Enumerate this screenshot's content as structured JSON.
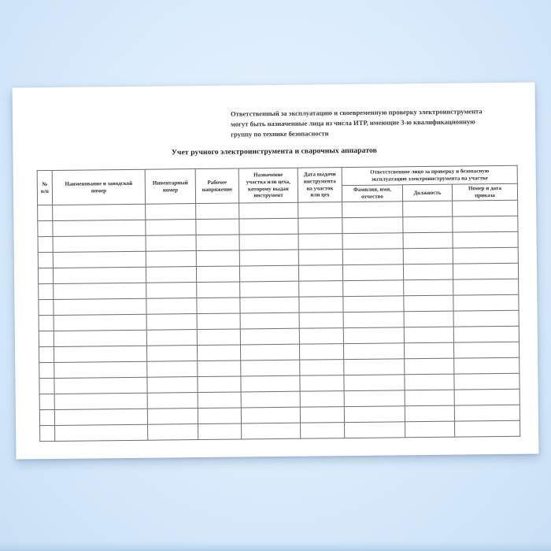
{
  "colors": {
    "background_blue": "#d7e9fb",
    "paper_white": "#ffffff",
    "table_border_gray": "#6e6e6e",
    "text_dark": "#2d2d2d"
  },
  "document": {
    "note": "Ответственный за эксплуатацию и своевременную проверку электроинструмента\nмогут быть назначенные лица из числа ИТР, имеющие 3-ю квалификационную\nгруппу по технике безопасности",
    "title": "Учет ручного электроинструмента и сварочных аппаратов"
  },
  "table": {
    "header": {
      "no": "№\nп/п",
      "name": "Наименование и заводской\nномер",
      "inventory": "Инвентарный\nномер",
      "voltage": "Рабочее\nнапряжение",
      "purpose": "Назначение\nучастка или цеха,\nкоторому выдан\nинструмент",
      "issue_date": "Дата выдачи\nинструмента\nна участок\nили цех",
      "responsible_group": "Ответстсвенное лицо за проверку и безопасную\nэксплуатацию электроинструмента на участке",
      "full_name": "Фамилия, имя,\nотчество",
      "position": "Должность",
      "order": "Номер и дата\nприказа"
    },
    "body": {
      "row_count": 15,
      "col_count": 9
    }
  }
}
